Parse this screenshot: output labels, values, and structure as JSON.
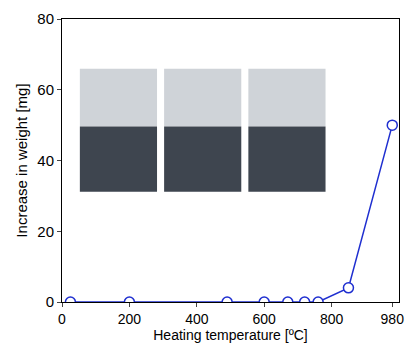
{
  "chart_data": {
    "type": "line",
    "x_label": "Heating temperature [ºC]",
    "y_label": "Increase in weight [mg]",
    "x": [
      25,
      200,
      490,
      600,
      670,
      720,
      760,
      850,
      980
    ],
    "values": [
      0,
      0,
      0,
      0,
      0,
      0,
      0,
      4,
      50
    ],
    "color": "#1f2fd0",
    "marker": "open circle",
    "line_style": "solid",
    "xlim": [
      0,
      1000
    ],
    "xticks": [
      0,
      200,
      400,
      600,
      800,
      980
    ],
    "ylim": [
      0,
      80
    ],
    "yticks": [
      0,
      20,
      40,
      60,
      80
    ],
    "grid": false
  }
}
